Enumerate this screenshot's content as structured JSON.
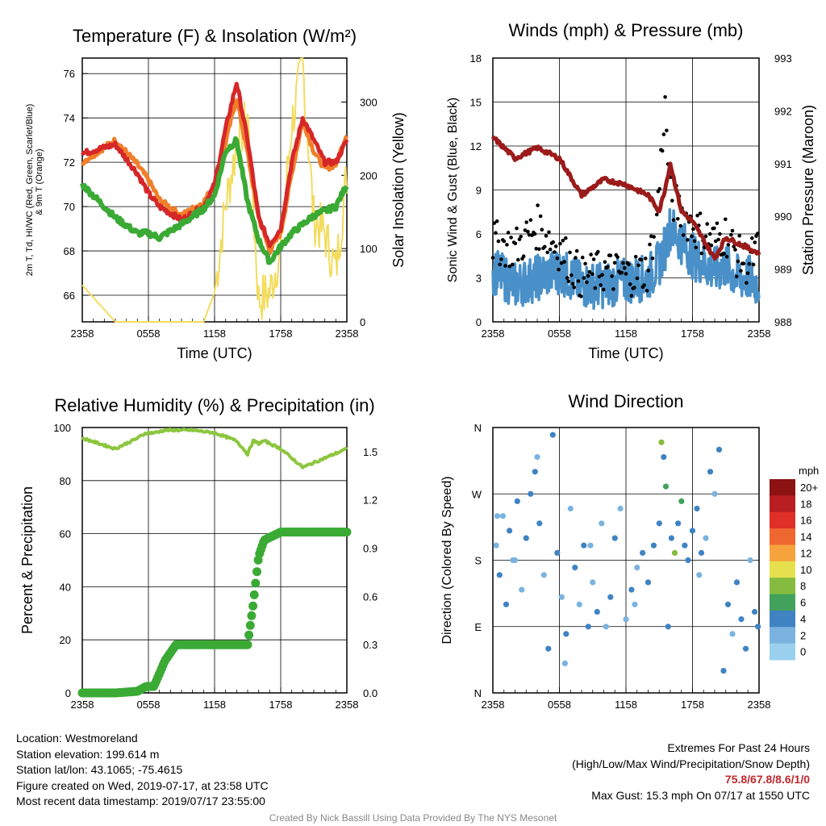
{
  "chart_data": [
    {
      "type": "line",
      "title": "Temperature (F) & Insolation (W/m²)",
      "xlabel": "Time (UTC)",
      "ylabel": "2m T, Td, HI/WC (Red, Green, Scarlet/Blue) & 9m T (Orange)",
      "ylabel_right": "Solar Insolation (Yellow)",
      "x_ticks": [
        "2358",
        "0558",
        "1158",
        "1758",
        "2358"
      ],
      "y_ticks": [
        "66",
        "68",
        "70",
        "72",
        "74",
        "76"
      ],
      "y_ticks_right": [
        "0",
        "100",
        "200",
        "300"
      ],
      "ylim": [
        64.8,
        76.7
      ],
      "ylim_right": [
        0,
        360
      ],
      "x_hours": [
        0,
        3,
        5,
        6,
        7,
        9,
        11,
        12,
        13,
        14,
        15,
        16,
        17,
        18,
        19,
        20,
        21,
        22,
        23,
        24
      ],
      "series": [
        {
          "color": "#d62728",
          "axis": "left",
          "values": [
            72.4,
            72.8,
            71.5,
            70.6,
            70.0,
            69.4,
            70.0,
            71.0,
            73.5,
            75.6,
            73.0,
            69.5,
            68.3,
            69.0,
            72.0,
            74.0,
            73.0,
            72.0,
            72.0,
            73.0
          ]
        },
        {
          "color": "#f07f2a",
          "axis": "left",
          "values": [
            72.0,
            73.0,
            71.9,
            71.2,
            70.3,
            69.6,
            70.2,
            71.0,
            72.9,
            74.9,
            72.4,
            69.5,
            68.0,
            68.8,
            71.5,
            73.9,
            72.5,
            71.7,
            71.9,
            73.3
          ]
        },
        {
          "color": "#3aaa35",
          "axis": "left",
          "values": [
            71.0,
            69.5,
            68.8,
            68.8,
            68.6,
            69.2,
            69.9,
            70.5,
            72.5,
            73.0,
            70.2,
            68.5,
            67.5,
            68.2,
            68.8,
            69.2,
            69.6,
            69.8,
            70.0,
            71.0
          ]
        },
        {
          "color": "#f3dc5d",
          "axis": "right",
          "values": [
            50,
            0,
            0,
            0,
            0,
            0,
            0,
            40,
            160,
            240,
            280,
            30,
            40,
            100,
            270,
            350,
            140,
            120,
            70,
            200
          ]
        }
      ]
    },
    {
      "type": "scatter",
      "title": "Winds (mph) & Pressure (mb)",
      "xlabel": "Time (UTC)",
      "ylabel": "Sonic Wind & Gust (Blue, Black)",
      "ylabel_right": "Station Pressure (Maroon)",
      "x_ticks": [
        "2358",
        "0558",
        "1158",
        "1758",
        "2358"
      ],
      "y_ticks": [
        "0",
        "3",
        "6",
        "9",
        "12",
        "15",
        "18"
      ],
      "y_ticks_right": [
        "988",
        "989",
        "990",
        "991",
        "992",
        "993"
      ],
      "ylim": [
        0,
        18
      ],
      "ylim_right": [
        988,
        993
      ],
      "x_hours": [
        0,
        2,
        4,
        6,
        8,
        10,
        12,
        14,
        15,
        15.5,
        16,
        17,
        18,
        20,
        21,
        22,
        23,
        24
      ],
      "series": [
        {
          "color": "#4a90c8",
          "values": [
            3.5,
            2.5,
            3.0,
            3.5,
            2.5,
            2.5,
            2.8,
            3.0,
            4.0,
            5.0,
            6.5,
            5.5,
            4.5,
            3.5,
            3.8,
            3.0,
            3.0,
            2.5
          ]
        },
        {
          "color": "#000000",
          "values": [
            5.5,
            5.0,
            6.5,
            5.0,
            3.0,
            3.5,
            3.2,
            3.5,
            9.0,
            15.0,
            8.5,
            7.5,
            6.5,
            5.5,
            6.0,
            4.5,
            4.0,
            5.0
          ]
        },
        {
          "color": "#9b1b1b",
          "axis": "right",
          "values": [
            991.5,
            991.1,
            991.3,
            991.1,
            990.4,
            990.7,
            990.6,
            990.4,
            990.1,
            990.5,
            991.0,
            990.1,
            989.9,
            989.2,
            989.6,
            989.5,
            989.4,
            989.3
          ]
        }
      ]
    },
    {
      "type": "line",
      "title": "Relative Humidity (%) & Precipitation (in)",
      "ylabel": "Percent & Precipitation",
      "x_ticks": [
        "2358",
        "0558",
        "1158",
        "1758",
        "2358"
      ],
      "y_ticks": [
        "0",
        "20",
        "40",
        "60",
        "80",
        "100"
      ],
      "y_ticks_right": [
        "0.0",
        "0.3",
        "0.6",
        "0.9",
        "1.2",
        "1.5"
      ],
      "ylim": [
        0,
        100
      ],
      "ylim_right": [
        0,
        1.65
      ],
      "x_hours": [
        0,
        3,
        5,
        5.8,
        6.5,
        7.5,
        8.5,
        10,
        12,
        14,
        15,
        15.5,
        16,
        16.5,
        18,
        20,
        24
      ],
      "series": [
        {
          "color": "#8cc63f",
          "values": [
            96,
            92,
            96,
            98,
            98,
            99,
            99,
            99,
            98,
            95,
            90,
            95,
            94,
            95,
            92,
            85,
            92
          ]
        },
        {
          "color": "#3aaa35",
          "axis": "right",
          "values": [
            0.0,
            0.0,
            0.01,
            0.04,
            0.04,
            0.2,
            0.3,
            0.3,
            0.3,
            0.3,
            0.3,
            0.55,
            0.85,
            0.95,
            1.0,
            1.0,
            1.0
          ]
        }
      ]
    },
    {
      "type": "scatter",
      "title": "Wind Direction",
      "ylabel": "Direction (Colored By Speed)",
      "x_ticks": [
        "2358",
        "0558",
        "1158",
        "1758",
        "2358"
      ],
      "y_ticks": [
        "N",
        "E",
        "S",
        "W",
        "N"
      ],
      "ylim": [
        0,
        360
      ],
      "points": [
        [
          0.3,
          200,
          2
        ],
        [
          0.6,
          160,
          3
        ],
        [
          0.9,
          240,
          2
        ],
        [
          1.2,
          120,
          4
        ],
        [
          1.5,
          220,
          3
        ],
        [
          1.8,
          180,
          2
        ],
        [
          2.2,
          260,
          3
        ],
        [
          2.6,
          140,
          2
        ],
        [
          3.0,
          210,
          4
        ],
        [
          3.4,
          270,
          3
        ],
        [
          3.8,
          300,
          4
        ],
        [
          4.2,
          230,
          3
        ],
        [
          4.6,
          160,
          2
        ],
        [
          5.0,
          60,
          3
        ],
        [
          5.4,
          350,
          4
        ],
        [
          5.8,
          190,
          3
        ],
        [
          6.2,
          130,
          2
        ],
        [
          6.6,
          80,
          3
        ],
        [
          7.0,
          250,
          2
        ],
        [
          7.4,
          170,
          3
        ],
        [
          7.8,
          120,
          2
        ],
        [
          8.2,
          200,
          3
        ],
        [
          8.6,
          90,
          4
        ],
        [
          9.0,
          150,
          2
        ],
        [
          9.4,
          110,
          3
        ],
        [
          9.8,
          230,
          2
        ],
        [
          10.2,
          90,
          2
        ],
        [
          10.6,
          130,
          3
        ],
        [
          11.0,
          210,
          4
        ],
        [
          11.5,
          250,
          2
        ],
        [
          12.0,
          100,
          2
        ],
        [
          12.5,
          140,
          3
        ],
        [
          13.0,
          170,
          2
        ],
        [
          13.5,
          190,
          4
        ],
        [
          14.0,
          150,
          3
        ],
        [
          14.5,
          200,
          4
        ],
        [
          15.0,
          230,
          3
        ],
        [
          15.2,
          340,
          7
        ],
        [
          15.4,
          320,
          3
        ],
        [
          15.6,
          280,
          6
        ],
        [
          15.8,
          90,
          3
        ],
        [
          16.1,
          210,
          4
        ],
        [
          16.4,
          190,
          8
        ],
        [
          16.7,
          230,
          4
        ],
        [
          17.0,
          260,
          6
        ],
        [
          17.3,
          200,
          3
        ],
        [
          17.6,
          180,
          4
        ],
        [
          18.0,
          220,
          3
        ],
        [
          18.4,
          250,
          4
        ],
        [
          18.8,
          190,
          3
        ],
        [
          19.2,
          210,
          2
        ],
        [
          19.6,
          300,
          4
        ],
        [
          20.0,
          270,
          2
        ],
        [
          20.4,
          330,
          3
        ],
        [
          20.8,
          30,
          4
        ],
        [
          21.2,
          120,
          3
        ],
        [
          21.6,
          80,
          2
        ],
        [
          22.0,
          150,
          3
        ],
        [
          22.4,
          100,
          4
        ],
        [
          22.8,
          60,
          3
        ],
        [
          23.2,
          180,
          2
        ],
        [
          23.6,
          110,
          3
        ],
        [
          23.9,
          90,
          4
        ],
        [
          0.4,
          240,
          1
        ],
        [
          2.0,
          180,
          1
        ],
        [
          4.0,
          320,
          2
        ],
        [
          6.5,
          40,
          1
        ],
        [
          8.8,
          200,
          1
        ],
        [
          12.8,
          120,
          1
        ],
        [
          18.6,
          160,
          2
        ]
      ],
      "colorbar_title": "mph",
      "colorbar_ticks": [
        "20+",
        "18",
        "16",
        "14",
        "12",
        "10",
        "8",
        "6",
        "4",
        "2",
        "0"
      ],
      "colorbar_colors": [
        "#fbe1ef",
        "#9ad1ef",
        "#7ab3e0",
        "#3f83c3",
        "#42a25c",
        "#85bc3f",
        "#e6e04e",
        "#f6a33d",
        "#ef6730",
        "#df3027",
        "#b81e22",
        "#8d1212"
      ]
    }
  ],
  "station_info": {
    "location": "Location: Westmoreland",
    "elevation": "Station elevation: 199.614 m",
    "latlon": "Station lat/lon: 43.1065; -75.4615",
    "created": "Figure created on Wed, 2019-07-17, at 23:58 UTC",
    "recent": "Most recent data timestamp: 2019/07/17 23:55:00"
  },
  "extremes": {
    "heading": "Extremes For Past 24 Hours",
    "subheading": "(High/Low/Max Wind/Precipitation/Snow Depth)",
    "values": "75.8/67.8/8.6/1/0",
    "max_gust": "Max Gust: 15.3 mph On 07/17 at 1550 UTC"
  },
  "credit": "Created By Nick Bassill Using Data Provided By The NYS Mesonet"
}
